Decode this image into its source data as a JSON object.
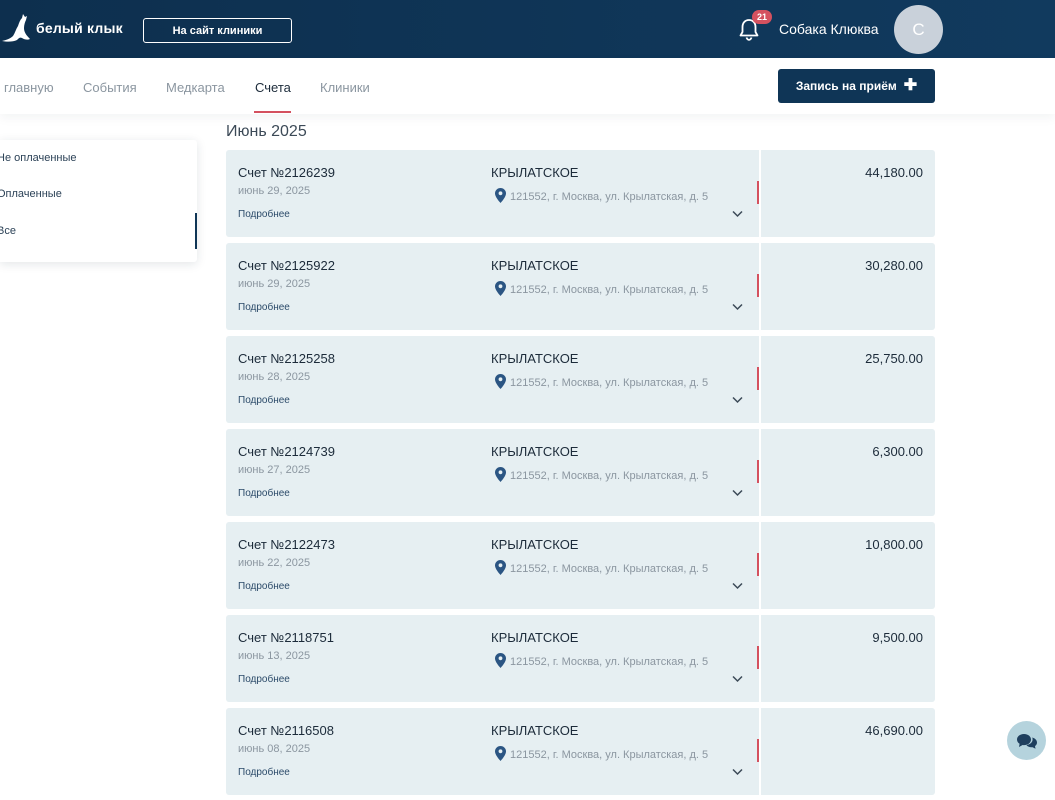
{
  "header": {
    "logo_text": "белый клык",
    "site_button": "На сайт клиники",
    "notification_count": "21",
    "user_name": "Собака Клюква",
    "avatar_letter": "С"
  },
  "nav": {
    "items": [
      "главную",
      "События",
      "Медкарта",
      "Счета",
      "Клиники"
    ],
    "active": "Счета",
    "book_button": "Запись на приём"
  },
  "filter": {
    "items": [
      "Не оплаченные",
      "Оплаченные",
      "Все"
    ],
    "active": "Все"
  },
  "main": {
    "month": "Июнь 2025",
    "bills": [
      {
        "number": "Счет №2126239",
        "date": "июнь 29, 2025",
        "more": "Подробнее",
        "clinic": "КРЫЛАТСКОЕ",
        "address": "121552, г. Москва, ул. Крылатская, д. 5",
        "amount": "44,180.00"
      },
      {
        "number": "Счет №2125922",
        "date": "июнь 29, 2025",
        "more": "Подробнее",
        "clinic": "КРЫЛАТСКОЕ",
        "address": "121552, г. Москва, ул. Крылатская, д. 5",
        "amount": "30,280.00"
      },
      {
        "number": "Счет №2125258",
        "date": "июнь 28, 2025",
        "more": "Подробнее",
        "clinic": "КРЫЛАТСКОЕ",
        "address": "121552, г. Москва, ул. Крылатская, д. 5",
        "amount": "25,750.00"
      },
      {
        "number": "Счет №2124739",
        "date": "июнь 27, 2025",
        "more": "Подробнее",
        "clinic": "КРЫЛАТСКОЕ",
        "address": "121552, г. Москва, ул. Крылатская, д. 5",
        "amount": "6,300.00"
      },
      {
        "number": "Счет №2122473",
        "date": "июнь 22, 2025",
        "more": "Подробнее",
        "clinic": "КРЫЛАТСКОЕ",
        "address": "121552, г. Москва, ул. Крылатская, д. 5",
        "amount": "10,800.00"
      },
      {
        "number": "Счет №2118751",
        "date": "июнь 13, 2025",
        "more": "Подробнее",
        "clinic": "КРЫЛАТСКОЕ",
        "address": "121552, г. Москва, ул. Крылатская, д. 5",
        "amount": "9,500.00"
      },
      {
        "number": "Счет №2116508",
        "date": "июнь 08, 2025",
        "more": "Подробнее",
        "clinic": "КРЫЛАТСКОЕ",
        "address": "121552, г. Москва, ул. Крылатская, д. 5",
        "amount": "46,690.00"
      }
    ]
  },
  "colors": {
    "header_bg": "#0f3556",
    "accent_red": "#d4515f",
    "card_bg": "#e6eff2",
    "chat_bg": "#b5d3dd"
  },
  "icons": {
    "logo": "kangaroo-logo-icon",
    "bell": "bell-icon",
    "plus": "plus-icon",
    "pin": "location-pin-icon",
    "chevron": "chevron-down-icon",
    "chat": "chat-bubble-icon"
  }
}
